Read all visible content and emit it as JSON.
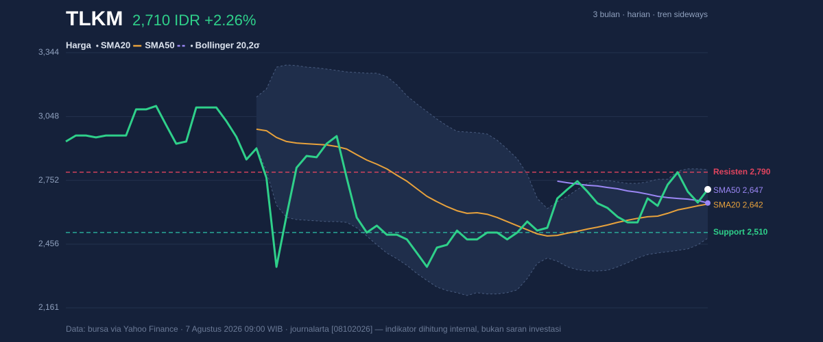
{
  "chart_data": {
    "type": "line",
    "title": "TLKM",
    "headline": "2,710 IDR +2.26%",
    "subtitle": "3 bulan · harian · tren sideways",
    "footer": "Data: bursa via Yahoo Finance · 7 Agustus 2026 09:00 WIB · journalarta [08102026] — indikator dihitung internal, bukan saran investasi",
    "ylim": [
      2161,
      3344
    ],
    "yticks": [
      {
        "value": 2161,
        "label": "2,161"
      },
      {
        "value": 2456,
        "label": "2,456"
      },
      {
        "value": 2752,
        "label": "2,752"
      },
      {
        "value": 3048,
        "label": "3,048"
      },
      {
        "value": 3344,
        "label": "3,344"
      }
    ],
    "grid": true,
    "series": [
      {
        "name": "Harga",
        "color": "#2fd08a",
        "values": [
          2932,
          2960,
          2960,
          2951,
          2960,
          2960,
          2960,
          3081,
          3081,
          3097,
          3008,
          2922,
          2932,
          3090,
          3090,
          3090,
          3027,
          2954,
          2849,
          2900,
          2764,
          2351,
          2589,
          2811,
          2865,
          2859,
          2922,
          2957,
          2764,
          2580,
          2510,
          2542,
          2500,
          2500,
          2478,
          2415,
          2351,
          2440,
          2453,
          2519,
          2478,
          2478,
          2510,
          2510,
          2478,
          2510,
          2561,
          2519,
          2532,
          2668,
          2710,
          2748,
          2700,
          2646,
          2624,
          2583,
          2557,
          2557,
          2668,
          2634,
          2732,
          2789,
          2700,
          2649,
          2710
        ]
      },
      {
        "name": "SMA20",
        "color": "#e8a23c",
        "end_label": "SMA20 2,642",
        "values": [
          null,
          null,
          null,
          null,
          null,
          null,
          null,
          null,
          null,
          null,
          null,
          null,
          null,
          null,
          null,
          null,
          null,
          null,
          null,
          2989,
          2982,
          2951,
          2932,
          2925,
          2922,
          2919,
          2916,
          2909,
          2897,
          2871,
          2846,
          2827,
          2805,
          2776,
          2748,
          2713,
          2678,
          2653,
          2630,
          2611,
          2599,
          2602,
          2595,
          2580,
          2561,
          2542,
          2523,
          2504,
          2494,
          2497,
          2507,
          2516,
          2526,
          2535,
          2545,
          2557,
          2567,
          2576,
          2583,
          2586,
          2599,
          2615,
          2624,
          2634,
          2642
        ]
      },
      {
        "name": "SMA50",
        "color": "#9b87f5",
        "end_label": "SMA50 2,647",
        "values": [
          null,
          null,
          null,
          null,
          null,
          null,
          null,
          null,
          null,
          null,
          null,
          null,
          null,
          null,
          null,
          null,
          null,
          null,
          null,
          null,
          null,
          null,
          null,
          null,
          null,
          null,
          null,
          null,
          null,
          null,
          null,
          null,
          null,
          null,
          null,
          null,
          null,
          null,
          null,
          null,
          null,
          null,
          null,
          null,
          null,
          null,
          null,
          null,
          null,
          2748,
          2741,
          2735,
          2729,
          2726,
          2719,
          2713,
          2703,
          2697,
          2688,
          2678,
          2672,
          2668,
          2665,
          2659,
          2647
        ]
      }
    ],
    "band": {
      "name": "Bollinger 20,2σ",
      "color": "#4a5d80",
      "upper": [
        null,
        null,
        null,
        null,
        null,
        null,
        null,
        null,
        null,
        null,
        null,
        null,
        null,
        null,
        null,
        null,
        null,
        null,
        null,
        3138,
        3176,
        3277,
        3287,
        3284,
        3277,
        3274,
        3268,
        3262,
        3255,
        3252,
        3249,
        3249,
        3233,
        3195,
        3144,
        3106,
        3071,
        3036,
        3005,
        2979,
        2976,
        2973,
        2967,
        2938,
        2897,
        2852,
        2780,
        2668,
        2621,
        2653,
        2678,
        2710,
        2738,
        2751,
        2751,
        2745,
        2738,
        2738,
        2745,
        2757,
        2757,
        2795,
        2805,
        2805,
        2802
      ],
      "lower": [
        null,
        null,
        null,
        null,
        null,
        null,
        null,
        null,
        null,
        null,
        null,
        null,
        null,
        null,
        null,
        null,
        null,
        null,
        null,
        2906,
        2795,
        2637,
        2580,
        2570,
        2567,
        2564,
        2561,
        2561,
        2557,
        2532,
        2494,
        2453,
        2415,
        2389,
        2358,
        2320,
        2288,
        2257,
        2241,
        2231,
        2218,
        2231,
        2225,
        2225,
        2231,
        2244,
        2297,
        2367,
        2392,
        2377,
        2351,
        2338,
        2332,
        2332,
        2335,
        2351,
        2370,
        2392,
        2408,
        2415,
        2421,
        2427,
        2434,
        2453,
        2484
      ]
    },
    "levels": [
      {
        "label": "Resisten 2,790",
        "value": 2790,
        "color": "#e0445e"
      },
      {
        "label": "Support 2,510",
        "value": 2510,
        "color": "#2bb5a0",
        "label_color": "#2fd08a"
      }
    ]
  }
}
